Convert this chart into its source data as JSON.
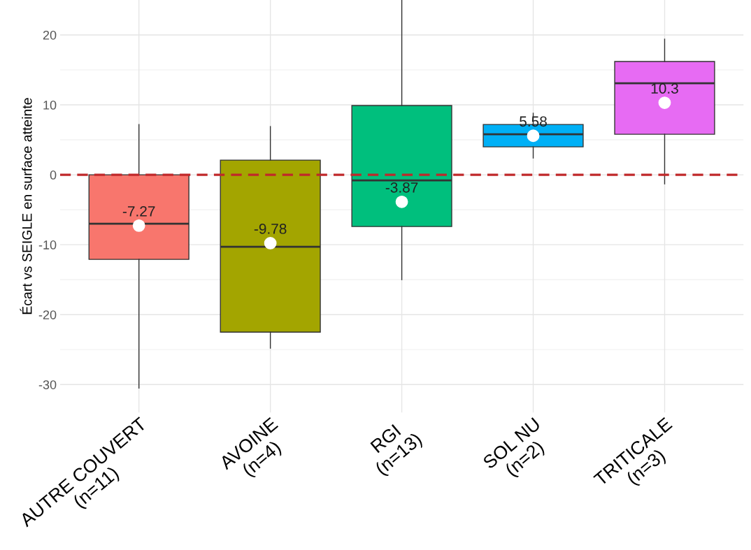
{
  "chart_data": {
    "type": "box",
    "ylabel": "Écart vs SEIGLE en surface atteinte",
    "categories": [
      "AUTRE COUVERT\n(n=11)",
      "AVOINE\n(n=4)",
      "RGI\n(n=13)",
      "SOL NU\n(n=2)",
      "TRITICALE\n(n=3)"
    ],
    "boxes": [
      {
        "low": -30.5,
        "q1": -12.1,
        "median": -7,
        "q3": 0,
        "high": 7.2
      },
      {
        "low": -24.8,
        "q1": -22.5,
        "median": -10.3,
        "q3": 2.1,
        "high": 6.9
      },
      {
        "low": -15,
        "q1": -7.4,
        "median": -0.8,
        "q3": 9.9,
        "high": 25
      },
      {
        "low": 2.4,
        "q1": 4,
        "median": 5.8,
        "q3": 7.2,
        "high": 8.8
      },
      {
        "low": -1.3,
        "q1": 5.8,
        "median": 13.1,
        "q3": 16.2,
        "high": 19.4
      }
    ],
    "series": [
      {
        "type": "scatter",
        "x": [
          "AUTRE COUVERT\n(n=11)",
          "AVOINE\n(n=4)",
          "RGI\n(n=13)",
          "SOL NU\n(n=2)",
          "TRITICALE\n(n=3)"
        ],
        "color": "#ffffff",
        "values": [
          -7.27,
          -9.78,
          -3.87,
          5.58,
          10.3
        ],
        "value_labels": [
          "-7.27",
          "-9.78",
          "-3.87",
          "5.58",
          "10.3"
        ]
      }
    ],
    "colors": [
      "#f8766d",
      "#a3a500",
      "#00bf7d",
      "#00b0f6",
      "#e76bf3"
    ],
    "ylim": [
      -34,
      25
    ],
    "yticks": [
      -30,
      -20,
      -10,
      0,
      10,
      20
    ],
    "ref_lines": [
      {
        "axis": "y",
        "value": 0,
        "label": null,
        "color": "#c0282a",
        "line_style": "dashed"
      }
    ],
    "grid": true,
    "legend": false
  }
}
